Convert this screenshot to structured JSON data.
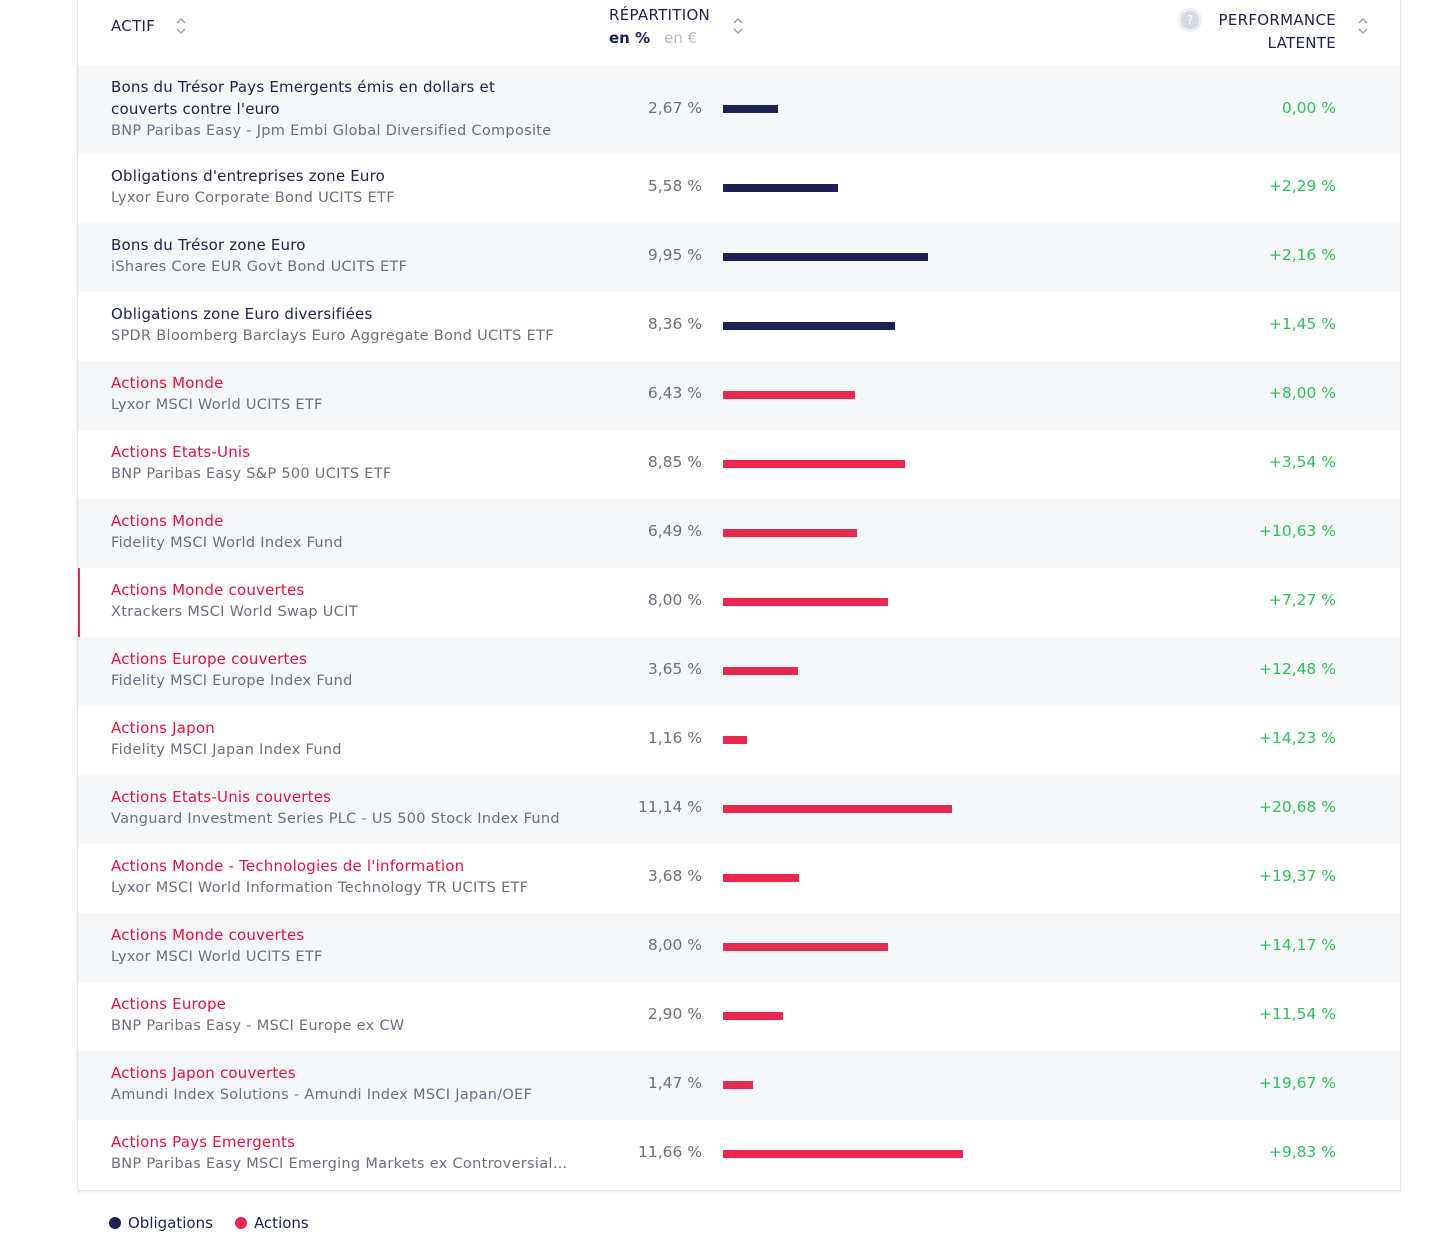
{
  "colors": {
    "obligations": "#1d2150",
    "actions": "#e8294f",
    "positive": "#2fbf5b"
  },
  "header": {
    "actif": "ACTIF",
    "repartition": "RÉPARTITION",
    "toggle_pct": "en %",
    "toggle_eur": "en €",
    "help": "?",
    "performance_line1": "PERFORMANCE",
    "performance_line2": "LATENTE",
    "sort_icon": "sort-arrows-icon",
    "help_icon": "question-mark-icon"
  },
  "rows": [
    {
      "category": "obligations",
      "name": "Bons du Trésor Pays Emergents émis en dollars et couverts contre l'euro",
      "fund": "BNP Paribas Easy - Jpm Embi Global Diversified Composite",
      "pct_label": "2,67 %",
      "pct": 2.67,
      "perf": "0,00 %"
    },
    {
      "category": "obligations",
      "name": "Obligations d'entreprises zone Euro",
      "fund": "Lyxor Euro Corporate Bond UCITS ETF",
      "pct_label": "5,58 %",
      "pct": 5.58,
      "perf": "+2,29 %"
    },
    {
      "category": "obligations",
      "name": "Bons du Trésor zone Euro",
      "fund": "iShares Core EUR Govt Bond UCITS ETF",
      "pct_label": "9,95 %",
      "pct": 9.95,
      "perf": "+2,16 %"
    },
    {
      "category": "obligations",
      "name": "Obligations zone Euro diversifiées",
      "fund": "SPDR Bloomberg Barclays Euro Aggregate Bond UCITS ETF",
      "pct_label": "8,36 %",
      "pct": 8.36,
      "perf": "+1,45 %"
    },
    {
      "category": "actions",
      "name": "Actions Monde",
      "fund": "Lyxor MSCI World UCITS ETF",
      "pct_label": "6,43 %",
      "pct": 6.43,
      "perf": "+8,00 %"
    },
    {
      "category": "actions",
      "name": "Actions Etats-Unis",
      "fund": "BNP Paribas Easy S&P 500 UCITS ETF",
      "pct_label": "8,85 %",
      "pct": 8.85,
      "perf": "+3,54 %"
    },
    {
      "category": "actions",
      "name": "Actions Monde",
      "fund": "Fidelity MSCI World Index Fund",
      "pct_label": "6,49 %",
      "pct": 6.49,
      "perf": "+10,63 %"
    },
    {
      "category": "actions",
      "name": "Actions Monde couvertes",
      "fund": "Xtrackers MSCI World Swap UCIT",
      "pct_label": "8,00 %",
      "pct": 8.0,
      "perf": "+7,27 %",
      "active": true
    },
    {
      "category": "actions",
      "name": "Actions Europe couvertes",
      "fund": "Fidelity MSCI Europe Index Fund",
      "pct_label": "3,65 %",
      "pct": 3.65,
      "perf": "+12,48 %"
    },
    {
      "category": "actions",
      "name": "Actions Japon",
      "fund": "Fidelity MSCI Japan Index Fund",
      "pct_label": "1,16 %",
      "pct": 1.16,
      "perf": "+14,23 %"
    },
    {
      "category": "actions",
      "name": "Actions Etats-Unis couvertes",
      "fund": "Vanguard Investment Series PLC - US 500 Stock Index Fund",
      "pct_label": "11,14 %",
      "pct": 11.14,
      "perf": "+20,68 %"
    },
    {
      "category": "actions",
      "name": "Actions Monde - Technologies de l'information",
      "fund": "Lyxor MSCI World Information Technology TR UCITS ETF",
      "pct_label": "3,68 %",
      "pct": 3.68,
      "perf": "+19,37 %"
    },
    {
      "category": "actions",
      "name": "Actions Monde couvertes",
      "fund": "Lyxor MSCI World UCITS ETF",
      "pct_label": "8,00 %",
      "pct": 8.0,
      "perf": "+14,17 %"
    },
    {
      "category": "actions",
      "name": "Actions Europe",
      "fund": "BNP Paribas Easy - MSCI Europe ex CW",
      "pct_label": "2,90 %",
      "pct": 2.9,
      "perf": "+11,54 %"
    },
    {
      "category": "actions",
      "name": "Actions Japon couvertes",
      "fund": "Amundi Index Solutions - Amundi Index MSCI Japan/OEF",
      "pct_label": "1,47 %",
      "pct": 1.47,
      "perf": "+19,67 %"
    },
    {
      "category": "actions",
      "name": "Actions Pays Emergents",
      "fund": "BNP Paribas Easy MSCI Emerging Markets ex Controversial W...",
      "pct_label": "11,66 %",
      "pct": 11.66,
      "perf": "+9,83 %"
    }
  ],
  "legend": {
    "obligations": "Obligations",
    "actions": "Actions"
  }
}
